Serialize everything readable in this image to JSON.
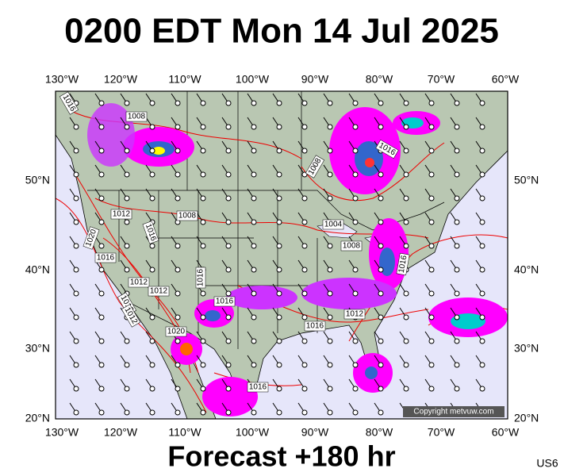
{
  "title": "0200 EDT Mon 14 Jul 2025",
  "footer": "Forecast +180 hr",
  "region": "US6",
  "copyright": "Copyright metvuw.com",
  "lon_labels": [
    "130°W",
    "120°W",
    "110°W",
    "100°W",
    "90°W",
    "80°W",
    "70°W",
    "60°W"
  ],
  "lat_labels": [
    "50°N",
    "40°N",
    "30°N",
    "20°N"
  ],
  "isobar_labels": [
    "1016",
    "1008",
    "1012",
    "1008",
    "1016",
    "1020",
    "1016",
    "1012",
    "1012",
    "1016",
    "1012",
    "1020",
    "1016",
    "1016",
    "1016",
    "1016",
    "1012",
    "1008",
    "1004",
    "1008",
    "1016",
    "1016"
  ]
}
